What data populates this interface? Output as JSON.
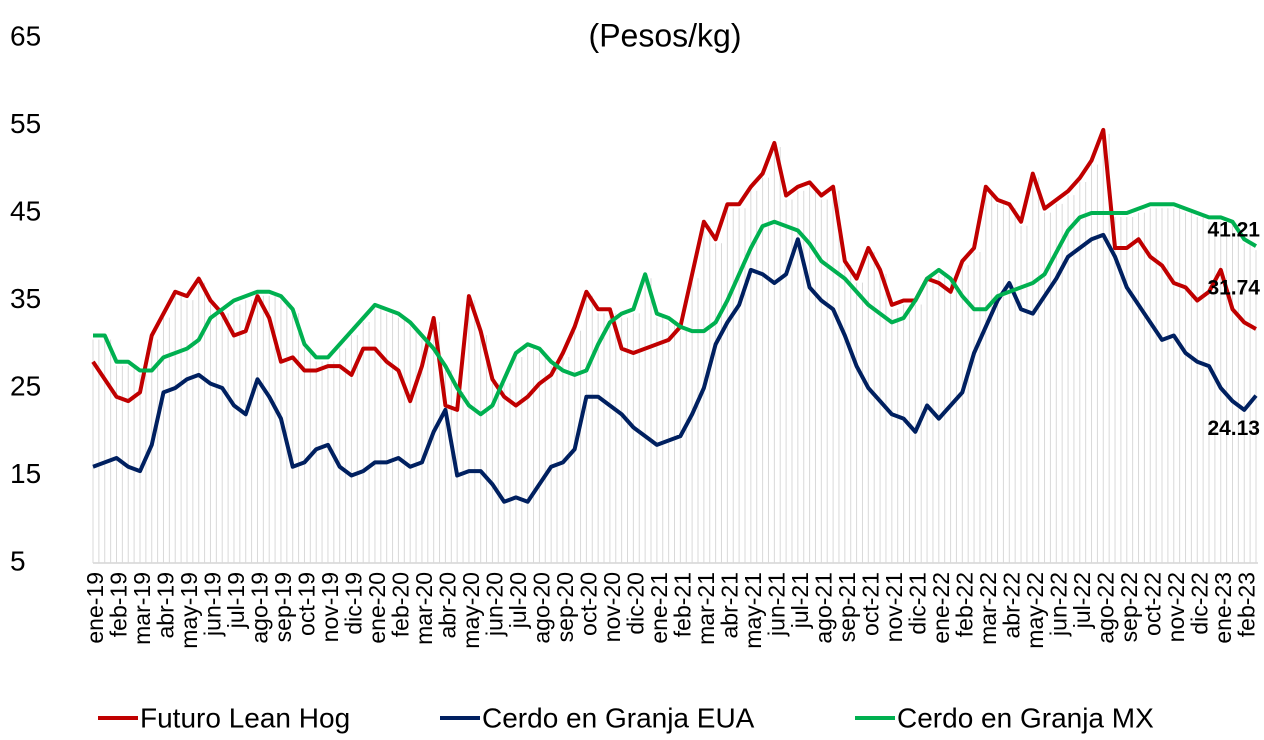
{
  "chart_data": {
    "type": "line",
    "title": "(Pesos/kg)",
    "categories": [
      "ene-19",
      null,
      "feb-19",
      null,
      "mar-19",
      null,
      "abr-19",
      null,
      "may-19",
      null,
      "jun-19",
      null,
      "jul-19",
      null,
      "ago-19",
      null,
      "sep-19",
      null,
      "oct-19",
      null,
      "nov-19",
      null,
      "dic-19",
      null,
      "ene-20",
      null,
      "feb-20",
      null,
      "mar-20",
      null,
      "abr-20",
      null,
      "may-20",
      null,
      "jun-20",
      null,
      "jul-20",
      null,
      "ago-20",
      null,
      "sep-20",
      null,
      "oct-20",
      null,
      "nov-20",
      null,
      "dic-20",
      null,
      "ene-21",
      null,
      "feb-21",
      null,
      "mar-21",
      null,
      "abr-21",
      null,
      "may-21",
      null,
      "jun-21",
      null,
      "jul-21",
      null,
      "ago-21",
      null,
      "sep-21",
      null,
      "oct-21",
      null,
      "nov-21",
      null,
      "dic-21",
      null,
      "ene-22",
      null,
      "feb-22",
      null,
      "mar-22",
      null,
      "abr-22",
      null,
      "may-22",
      null,
      "jun-22",
      null,
      "jul-22",
      null,
      "ago-22",
      null,
      "sep-22",
      null,
      "oct-22",
      null,
      "nov-22",
      null,
      "dic-22",
      null,
      "ene-23",
      null,
      "feb-23",
      null
    ],
    "series": [
      {
        "name": "Futuro Lean Hog",
        "color": "#c00000",
        "values": [
          28,
          26,
          24,
          23.5,
          24.5,
          31,
          33.5,
          36,
          35.5,
          37.5,
          35,
          33.5,
          31,
          31.5,
          35.5,
          33,
          28,
          28.5,
          27,
          27,
          27.5,
          27.5,
          26.5,
          29.5,
          29.5,
          28,
          27,
          23.5,
          27.5,
          33,
          23,
          22.5,
          35.5,
          31.5,
          26,
          24,
          23,
          24,
          25.5,
          26.5,
          29,
          32,
          36,
          34,
          34,
          29.5,
          29,
          29.5,
          30,
          30.5,
          32,
          38,
          44,
          42,
          46,
          46,
          48,
          49.5,
          53,
          47,
          48,
          48.5,
          47,
          48,
          39.5,
          37.5,
          41,
          38.5,
          34.5,
          35,
          35,
          37.5,
          37,
          36,
          39.5,
          41,
          48,
          46.5,
          46,
          44,
          49.5,
          45.5,
          46.5,
          47.5,
          49,
          51,
          54.5,
          41,
          41,
          42,
          40,
          39,
          37,
          36.5,
          35,
          36,
          38.5,
          34,
          32.5,
          31.74
        ]
      },
      {
        "name": "Cerdo en Granja EUA",
        "color": "#002060",
        "values": [
          16,
          16.5,
          17,
          16,
          15.5,
          18.5,
          24.5,
          25,
          26,
          26.5,
          25.5,
          25,
          23,
          22,
          26,
          24,
          21.5,
          16,
          16.5,
          18,
          18.5,
          16,
          15,
          15.5,
          16.5,
          16.5,
          17,
          16,
          16.5,
          20,
          22.5,
          15,
          15.5,
          15.5,
          14,
          12,
          12.5,
          12,
          14,
          16,
          16.5,
          18,
          24,
          24,
          23,
          22,
          20.5,
          19.5,
          18.5,
          19,
          19.5,
          22,
          25,
          30,
          32.5,
          34.5,
          38.5,
          38,
          37,
          38,
          42,
          36.5,
          35,
          34,
          31,
          27.5,
          25,
          23.5,
          22,
          21.5,
          20,
          23,
          21.5,
          23,
          24.5,
          29,
          32,
          35,
          37,
          34,
          33.5,
          35.5,
          37.5,
          40,
          41,
          42,
          42.5,
          40,
          36.5,
          34.5,
          32.5,
          30.5,
          31,
          29,
          28,
          27.5,
          25,
          23.5,
          22.5,
          24.13
        ]
      },
      {
        "name": "Cerdo en Granja MX",
        "color": "#00b050",
        "values": [
          31,
          31,
          28,
          28,
          27,
          27,
          28.5,
          29,
          29.5,
          30.5,
          33,
          34,
          35,
          35.5,
          36,
          36,
          35.5,
          34,
          30,
          28.5,
          28.5,
          30,
          31.5,
          33,
          34.5,
          34,
          33.5,
          32.5,
          31,
          29.5,
          27.5,
          25,
          23,
          22,
          23,
          26,
          29,
          30,
          29.5,
          28,
          27,
          26.5,
          27,
          30,
          32.5,
          33.5,
          34,
          38,
          33.5,
          33,
          32,
          31.5,
          31.5,
          32.5,
          35,
          38,
          41,
          43.5,
          44,
          43.5,
          43,
          41.5,
          39.5,
          38.5,
          37.5,
          36,
          34.5,
          33.5,
          32.5,
          33,
          35,
          37.5,
          38.5,
          37.5,
          35.5,
          34,
          34,
          35.5,
          36,
          36.5,
          37,
          38,
          40.5,
          43,
          44.5,
          45,
          45,
          45,
          45,
          45.5,
          46,
          46,
          46,
          45.5,
          45,
          44.5,
          44.5,
          44,
          42,
          41.21
        ]
      }
    ],
    "ylim": [
      5,
      65
    ],
    "yticks": [
      5,
      15,
      25,
      35,
      45,
      55,
      65
    ],
    "grid": false,
    "legend": "bottom"
  }
}
